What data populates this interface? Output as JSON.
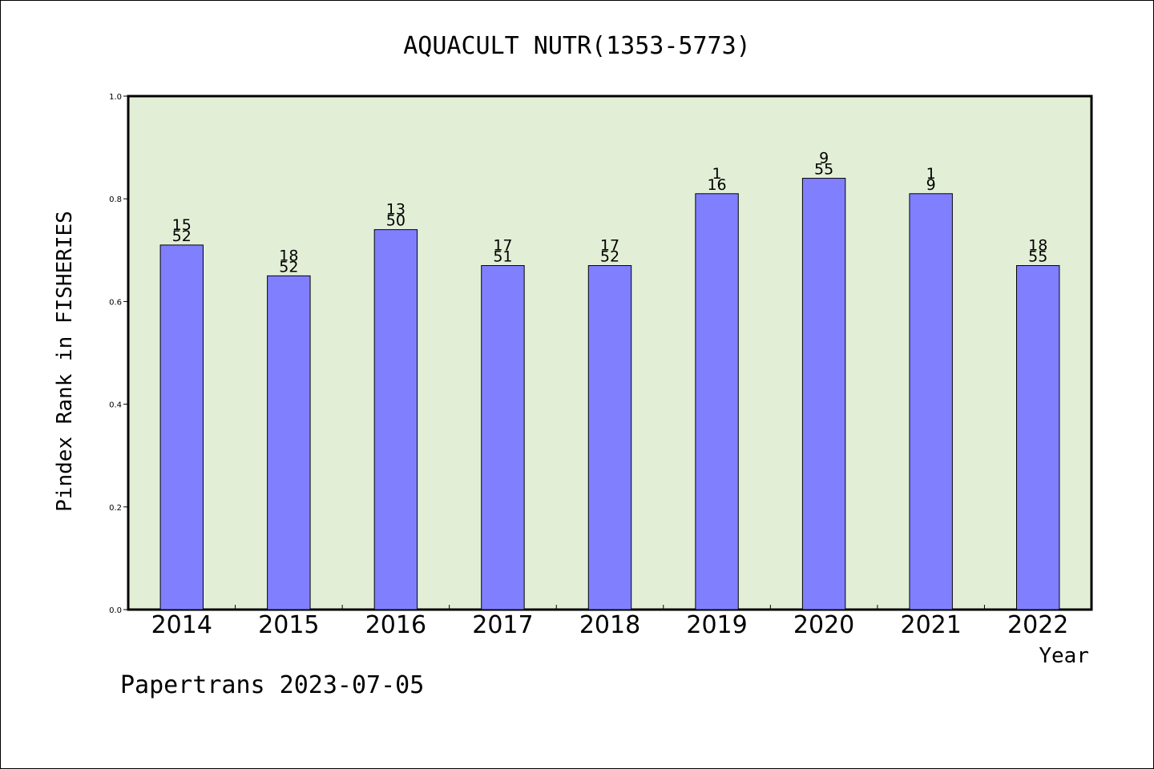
{
  "chart_data": {
    "type": "bar",
    "title": "AQUACULT NUTR(1353-5773)",
    "xlabel": "Year",
    "ylabel": "Pindex Rank in FISHERIES",
    "ylim": [
      0,
      1.0
    ],
    "yticks": [
      "0.0",
      "0.2",
      "0.4",
      "0.6",
      "0.8",
      "1.0"
    ],
    "yticks_values": [
      0,
      0.2,
      0.4,
      0.6,
      0.8,
      1.0
    ],
    "categories": [
      "2014",
      "2015",
      "2016",
      "2017",
      "2018",
      "2019",
      "2020",
      "2021",
      "2022"
    ],
    "values": [
      0.71,
      0.65,
      0.74,
      0.67,
      0.67,
      0.81,
      0.84,
      0.81,
      0.67
    ],
    "rank_labels": [
      "15",
      "18",
      "13",
      "17",
      "17",
      "1",
      "9",
      "1",
      "18"
    ],
    "total_labels": [
      "52",
      "52",
      "50",
      "51",
      "52",
      "16",
      "55",
      "9",
      "55"
    ],
    "grid": false,
    "colors": {
      "plot_background": "#e2efd6",
      "bar_fill": "#8080ff",
      "bar_stroke": "#000000"
    }
  },
  "footer": {
    "credit": "Papertrans 2023-07-05"
  }
}
